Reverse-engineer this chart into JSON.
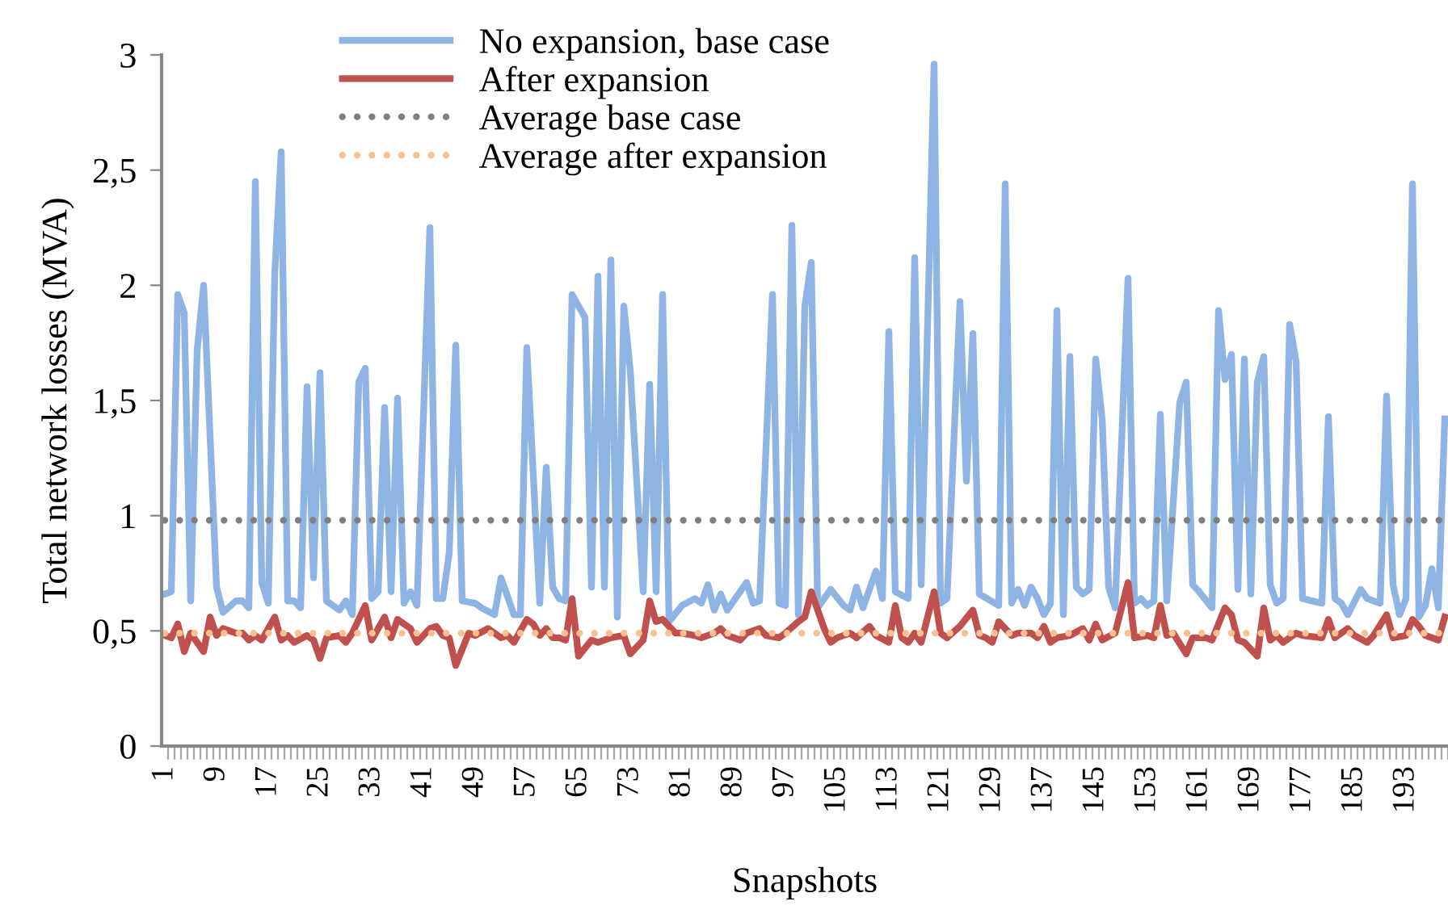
{
  "chart_data": {
    "type": "line",
    "xlabel": "Snapshots",
    "ylabel": "Total network losses (MVA)",
    "xlim": [
      0.5,
      199.5
    ],
    "xticks": [
      1,
      9,
      17,
      25,
      33,
      41,
      49,
      57,
      65,
      73,
      81,
      89,
      97,
      105,
      113,
      121,
      129,
      137,
      145,
      153,
      161,
      169,
      177,
      185,
      193
    ],
    "ylim": [
      0,
      3
    ],
    "yticks": [
      0,
      {
        "value": 0.5,
        "label": "0,5"
      },
      1,
      {
        "value": 1.5,
        "label": "1,5"
      },
      2,
      {
        "value": 2.5,
        "label": "2,5"
      },
      3
    ],
    "grid": false,
    "legend": "top",
    "marker": "none",
    "series": [
      {
        "name": "No expansion, base case",
        "color": "#8eb4e3",
        "line_style": "solid",
        "x": [
          1,
          2,
          3,
          4,
          5,
          6,
          7,
          9,
          10,
          12,
          13,
          14,
          15,
          16,
          17,
          18,
          19,
          20,
          21,
          22,
          23,
          24,
          25,
          26,
          28,
          29,
          30,
          31,
          32,
          33,
          34,
          35,
          36,
          37,
          38,
          39,
          40,
          42,
          43,
          44,
          45,
          46,
          47,
          49,
          50,
          52,
          53,
          55,
          56,
          57,
          59,
          60,
          61,
          62,
          63,
          64,
          66,
          67,
          68,
          69,
          70,
          71,
          72,
          73,
          75,
          76,
          77,
          78,
          79,
          81,
          83,
          84,
          85,
          86,
          87,
          88,
          91,
          92,
          93,
          95,
          96,
          97,
          98,
          99,
          100,
          101,
          102,
          104,
          106,
          107,
          108,
          109,
          111,
          112,
          113,
          114,
          116,
          117,
          118,
          120,
          121,
          122,
          124,
          125,
          126,
          127,
          130,
          131,
          132,
          133,
          134,
          135,
          136,
          137,
          138,
          139,
          140,
          141,
          142,
          143,
          144,
          145,
          146,
          147,
          148,
          150,
          151,
          152,
          153,
          154,
          155,
          156,
          158,
          159,
          160,
          161,
          163,
          164,
          165,
          166,
          167,
          168,
          169,
          170,
          171,
          172,
          173,
          174,
          175,
          176,
          177,
          180,
          181,
          182,
          183,
          184,
          186,
          187,
          189,
          190,
          191,
          192,
          193,
          194,
          195,
          196,
          197,
          198,
          199
        ],
        "values": [
          0.66,
          0.67,
          1.96,
          1.88,
          0.63,
          1.72,
          2.0,
          0.69,
          0.58,
          0.63,
          0.63,
          0.6,
          2.45,
          0.71,
          0.62,
          2.05,
          2.58,
          0.63,
          0.63,
          0.6,
          1.56,
          0.73,
          1.62,
          0.63,
          0.59,
          0.63,
          0.57,
          1.58,
          1.64,
          0.64,
          0.67,
          1.47,
          0.67,
          1.51,
          0.62,
          0.67,
          0.61,
          2.25,
          0.64,
          0.64,
          0.84,
          1.74,
          0.63,
          0.62,
          0.6,
          0.57,
          0.73,
          0.57,
          0.57,
          1.73,
          0.62,
          1.21,
          0.69,
          0.64,
          0.63,
          1.96,
          1.86,
          0.69,
          2.04,
          0.69,
          2.11,
          0.56,
          1.91,
          1.63,
          0.67,
          1.57,
          0.67,
          1.96,
          0.54,
          0.61,
          0.64,
          0.62,
          0.7,
          0.59,
          0.66,
          0.59,
          0.71,
          0.62,
          0.63,
          1.96,
          0.62,
          0.61,
          2.26,
          0.57,
          1.91,
          2.1,
          0.6,
          0.68,
          0.61,
          0.59,
          0.69,
          0.6,
          0.76,
          0.64,
          1.8,
          0.67,
          0.64,
          2.12,
          0.7,
          2.96,
          0.62,
          0.64,
          1.93,
          1.15,
          1.79,
          0.66,
          0.61,
          2.44,
          0.62,
          0.68,
          0.61,
          0.69,
          0.64,
          0.57,
          0.62,
          1.89,
          0.57,
          1.69,
          0.69,
          0.66,
          0.68,
          1.68,
          1.42,
          0.69,
          0.6,
          2.03,
          0.62,
          0.64,
          0.61,
          0.63,
          1.44,
          0.63,
          1.49,
          1.58,
          0.7,
          0.67,
          0.6,
          1.89,
          1.59,
          1.7,
          0.68,
          1.68,
          0.66,
          1.58,
          1.69,
          0.7,
          0.62,
          0.64,
          1.83,
          1.67,
          0.64,
          0.62,
          1.43,
          0.64,
          0.62,
          0.57,
          0.68,
          0.64,
          0.62,
          1.52,
          0.7,
          0.57,
          0.64,
          2.44,
          0.56,
          0.61,
          0.77,
          0.6,
          1.42
        ]
      },
      {
        "name": "After expansion",
        "color": "#c0504d",
        "line_style": "solid",
        "x": [
          1,
          2,
          3,
          4,
          5,
          7,
          8,
          9,
          10,
          12,
          13,
          14,
          15,
          16,
          18,
          19,
          20,
          21,
          23,
          24,
          25,
          26,
          28,
          29,
          30,
          32,
          33,
          35,
          36,
          37,
          39,
          40,
          42,
          43,
          44,
          45,
          46,
          48,
          49,
          51,
          53,
          54,
          55,
          57,
          58,
          59,
          60,
          61,
          62,
          63,
          64,
          65,
          67,
          68,
          70,
          72,
          73,
          75,
          76,
          77,
          78,
          80,
          81,
          83,
          84,
          86,
          87,
          88,
          90,
          91,
          93,
          94,
          96,
          97,
          99,
          100,
          101,
          103,
          104,
          105,
          107,
          108,
          110,
          111,
          113,
          114,
          115,
          116,
          117,
          118,
          120,
          121,
          122,
          124,
          126,
          127,
          128,
          129,
          130,
          132,
          133,
          135,
          136,
          137,
          138,
          139,
          141,
          143,
          144,
          145,
          146,
          148,
          150,
          151,
          153,
          154,
          155,
          156,
          157,
          159,
          160,
          162,
          163,
          165,
          166,
          167,
          168,
          170,
          171,
          172,
          173,
          174,
          176,
          177,
          180,
          181,
          182,
          184,
          185,
          187,
          188,
          190,
          191,
          193,
          194,
          195,
          196,
          198,
          199
        ],
        "values": [
          0.48,
          0.47,
          0.53,
          0.41,
          0.49,
          0.41,
          0.56,
          0.48,
          0.51,
          0.49,
          0.49,
          0.46,
          0.48,
          0.46,
          0.56,
          0.46,
          0.48,
          0.45,
          0.48,
          0.46,
          0.38,
          0.47,
          0.48,
          0.45,
          0.49,
          0.61,
          0.46,
          0.56,
          0.47,
          0.55,
          0.51,
          0.45,
          0.51,
          0.52,
          0.48,
          0.47,
          0.35,
          0.49,
          0.48,
          0.51,
          0.47,
          0.48,
          0.45,
          0.55,
          0.53,
          0.48,
          0.51,
          0.47,
          0.47,
          0.46,
          0.64,
          0.39,
          0.46,
          0.45,
          0.47,
          0.48,
          0.4,
          0.46,
          0.63,
          0.54,
          0.55,
          0.49,
          0.49,
          0.48,
          0.47,
          0.49,
          0.51,
          0.48,
          0.46,
          0.49,
          0.51,
          0.48,
          0.47,
          0.49,
          0.54,
          0.56,
          0.67,
          0.51,
          0.45,
          0.47,
          0.49,
          0.47,
          0.52,
          0.48,
          0.45,
          0.61,
          0.47,
          0.45,
          0.49,
          0.45,
          0.67,
          0.49,
          0.47,
          0.52,
          0.59,
          0.48,
          0.47,
          0.45,
          0.54,
          0.48,
          0.49,
          0.49,
          0.47,
          0.52,
          0.45,
          0.47,
          0.48,
          0.51,
          0.46,
          0.53,
          0.46,
          0.49,
          0.71,
          0.47,
          0.48,
          0.47,
          0.61,
          0.48,
          0.49,
          0.4,
          0.47,
          0.47,
          0.46,
          0.6,
          0.57,
          0.46,
          0.45,
          0.39,
          0.6,
          0.46,
          0.48,
          0.45,
          0.49,
          0.48,
          0.47,
          0.55,
          0.47,
          0.51,
          0.48,
          0.45,
          0.48,
          0.57,
          0.47,
          0.48,
          0.55,
          0.52,
          0.48,
          0.46,
          0.56
        ]
      },
      {
        "name": "Average base case",
        "color": "#7f7f7f",
        "line_style": "dotted",
        "x": [
          1,
          199
        ],
        "values": [
          0.98,
          0.98
        ]
      },
      {
        "name": "Average after expansion",
        "color": "#fac090",
        "line_style": "dotted",
        "x": [
          1,
          199
        ],
        "values": [
          0.49,
          0.49
        ]
      }
    ]
  }
}
